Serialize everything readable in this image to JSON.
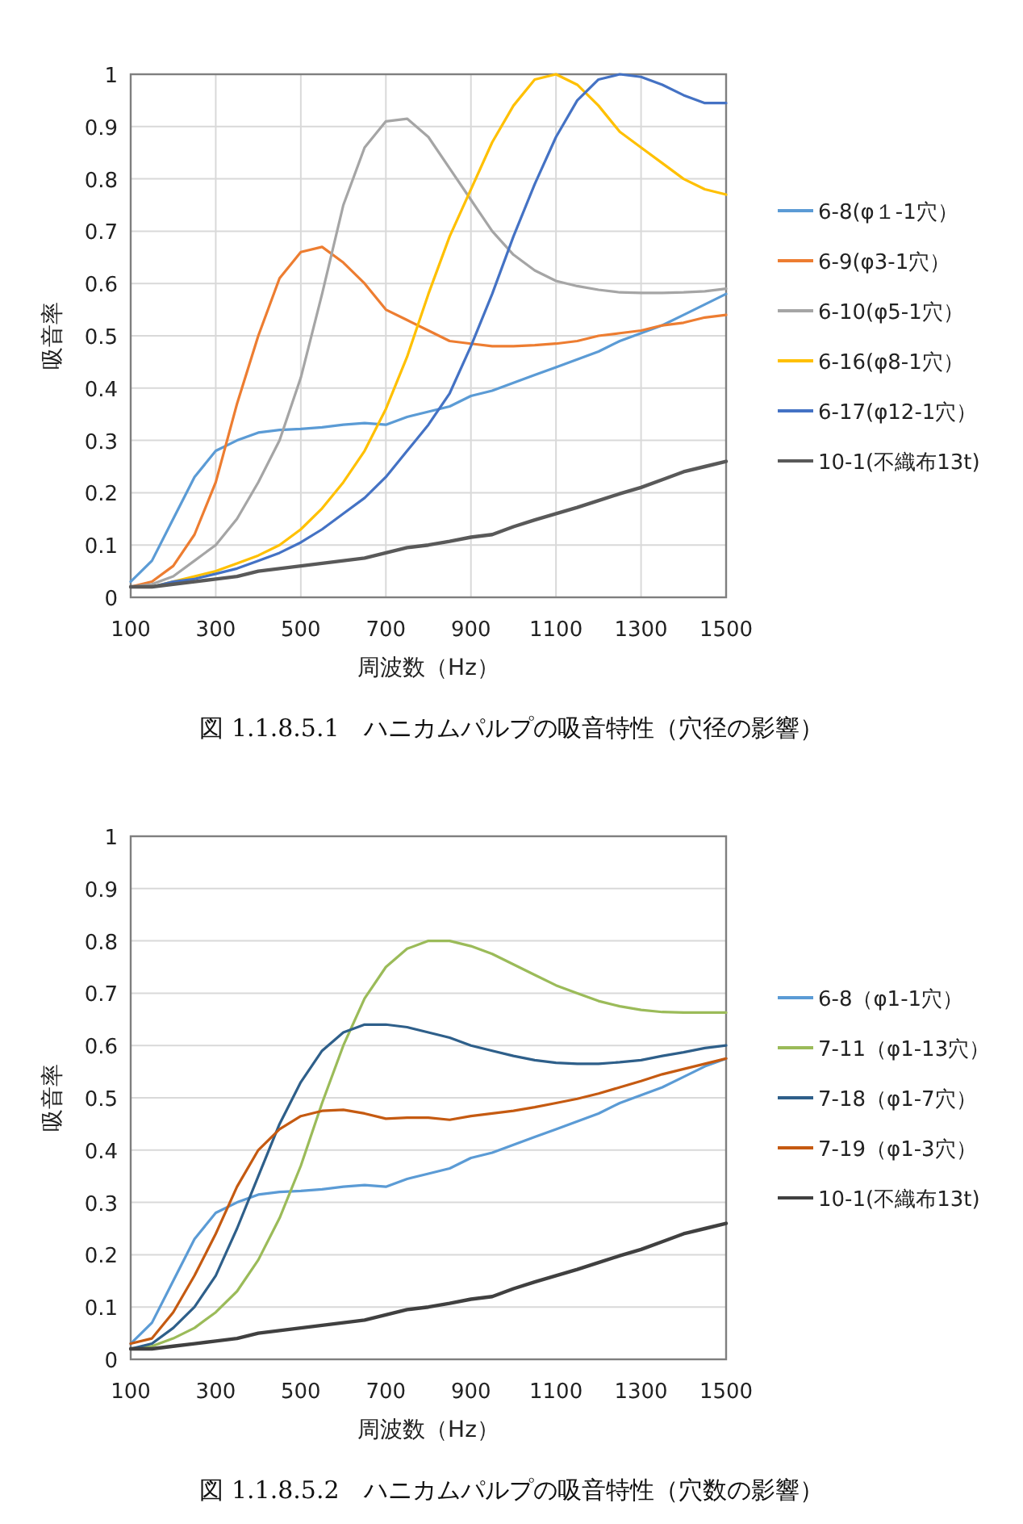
{
  "chart_data": [
    {
      "type": "line",
      "xlabel": "周波数（Hz）",
      "ylabel": "吸音率",
      "annotations": [
        "図 1.1.8.5.1　ハニカムパルプの吸音特性（穴径の影響）"
      ],
      "x": [
        100,
        150,
        200,
        250,
        300,
        350,
        400,
        450,
        500,
        550,
        600,
        650,
        700,
        750,
        800,
        850,
        900,
        950,
        1000,
        1050,
        1100,
        1150,
        1200,
        1250,
        1300,
        1350,
        1400,
        1450,
        1500
      ],
      "xlim": [
        100,
        1500
      ],
      "ylim": [
        0,
        1
      ],
      "xticks": [
        100,
        300,
        500,
        700,
        900,
        1100,
        1300,
        1500
      ],
      "yticks": [
        0,
        0.1,
        0.2,
        0.3,
        0.4,
        0.5,
        0.6,
        0.7,
        0.8,
        0.9,
        1
      ],
      "grid": true,
      "legend": "right",
      "line_style": "solid",
      "series": [
        {
          "name": "6-8(φ１-1穴）",
          "color": "#5b9bd5",
          "values": [
            0.03,
            0.07,
            0.15,
            0.23,
            0.28,
            0.3,
            0.315,
            0.32,
            0.322,
            0.325,
            0.33,
            0.333,
            0.33,
            0.345,
            0.355,
            0.365,
            0.385,
            0.395,
            0.41,
            0.425,
            0.44,
            0.455,
            0.47,
            0.49,
            0.505,
            0.52,
            0.54,
            0.56,
            0.58
          ]
        },
        {
          "name": "6-9(φ3-1穴）",
          "color": "#ed7d31",
          "values": [
            0.02,
            0.03,
            0.06,
            0.12,
            0.22,
            0.37,
            0.5,
            0.61,
            0.66,
            0.67,
            0.64,
            0.6,
            0.55,
            0.53,
            0.51,
            0.49,
            0.485,
            0.48,
            0.48,
            0.482,
            0.485,
            0.49,
            0.5,
            0.505,
            0.51,
            0.52,
            0.525,
            0.535,
            0.54
          ]
        },
        {
          "name": "6-10(φ5-1穴）",
          "color": "#a5a5a5",
          "values": [
            0.02,
            0.025,
            0.04,
            0.07,
            0.1,
            0.15,
            0.22,
            0.3,
            0.42,
            0.58,
            0.75,
            0.86,
            0.91,
            0.915,
            0.88,
            0.82,
            0.76,
            0.7,
            0.655,
            0.625,
            0.605,
            0.595,
            0.588,
            0.583,
            0.582,
            0.582,
            0.583,
            0.585,
            0.59
          ]
        },
        {
          "name": "6-16(φ8-1穴）",
          "color": "#ffc000",
          "values": [
            0.02,
            0.02,
            0.03,
            0.04,
            0.05,
            0.065,
            0.08,
            0.1,
            0.13,
            0.17,
            0.22,
            0.28,
            0.36,
            0.46,
            0.58,
            0.69,
            0.78,
            0.87,
            0.94,
            0.99,
            1.0,
            0.98,
            0.94,
            0.89,
            0.86,
            0.83,
            0.8,
            0.78,
            0.77
          ]
        },
        {
          "name": "6-17(φ12-1穴）",
          "color": "#4472c4",
          "values": [
            0.02,
            0.02,
            0.03,
            0.035,
            0.045,
            0.055,
            0.07,
            0.085,
            0.105,
            0.13,
            0.16,
            0.19,
            0.23,
            0.28,
            0.33,
            0.39,
            0.48,
            0.58,
            0.69,
            0.79,
            0.88,
            0.95,
            0.99,
            1.0,
            0.995,
            0.98,
            0.96,
            0.945,
            0.945
          ]
        },
        {
          "name": "10-1(不織布13t)",
          "color": "#595959",
          "values": [
            0.02,
            0.02,
            0.025,
            0.03,
            0.035,
            0.04,
            0.05,
            0.055,
            0.06,
            0.065,
            0.07,
            0.075,
            0.085,
            0.095,
            0.1,
            0.107,
            0.115,
            0.12,
            0.135,
            0.148,
            0.16,
            0.172,
            0.185,
            0.198,
            0.21,
            0.225,
            0.24,
            0.25,
            0.26
          ]
        }
      ]
    },
    {
      "type": "line",
      "xlabel": "周波数（Hz）",
      "ylabel": "吸音率",
      "annotations": [
        "図 1.1.8.5.2　ハニカムパルプの吸音特性（穴数の影響）"
      ],
      "x": [
        100,
        150,
        200,
        250,
        300,
        350,
        400,
        450,
        500,
        550,
        600,
        650,
        700,
        750,
        800,
        850,
        900,
        950,
        1000,
        1050,
        1100,
        1150,
        1200,
        1250,
        1300,
        1350,
        1400,
        1450,
        1500
      ],
      "xlim": [
        100,
        1500
      ],
      "ylim": [
        0,
        1
      ],
      "xticks": [
        100,
        300,
        500,
        700,
        900,
        1100,
        1300,
        1500
      ],
      "yticks": [
        0,
        0.1,
        0.2,
        0.3,
        0.4,
        0.5,
        0.6,
        0.7,
        0.8,
        0.9,
        1
      ],
      "grid": "y",
      "legend": "right",
      "line_style": "solid",
      "series": [
        {
          "name": "6-8（φ1-1穴）",
          "color": "#5b9bd5",
          "values": [
            0.03,
            0.07,
            0.15,
            0.23,
            0.28,
            0.3,
            0.315,
            0.32,
            0.322,
            0.325,
            0.33,
            0.333,
            0.33,
            0.345,
            0.355,
            0.365,
            0.385,
            0.395,
            0.41,
            0.425,
            0.44,
            0.455,
            0.47,
            0.49,
            0.505,
            0.52,
            0.54,
            0.56,
            0.575
          ]
        },
        {
          "name": "7-11（φ1-13穴）",
          "color": "#9bbb59",
          "values": [
            0.02,
            0.025,
            0.04,
            0.06,
            0.09,
            0.13,
            0.19,
            0.27,
            0.37,
            0.49,
            0.6,
            0.69,
            0.75,
            0.785,
            0.8,
            0.8,
            0.79,
            0.775,
            0.755,
            0.735,
            0.715,
            0.7,
            0.685,
            0.675,
            0.668,
            0.664,
            0.663,
            0.663,
            0.663
          ]
        },
        {
          "name": "7-18（φ1-7穴）",
          "color": "#2e5f8a",
          "values": [
            0.02,
            0.03,
            0.06,
            0.1,
            0.16,
            0.25,
            0.35,
            0.45,
            0.53,
            0.59,
            0.625,
            0.64,
            0.64,
            0.635,
            0.625,
            0.615,
            0.6,
            0.59,
            0.58,
            0.572,
            0.567,
            0.565,
            0.565,
            0.568,
            0.572,
            0.58,
            0.587,
            0.595,
            0.6
          ]
        },
        {
          "name": "7-19（φ1-3穴）",
          "color": "#c55a11",
          "values": [
            0.03,
            0.04,
            0.09,
            0.16,
            0.24,
            0.33,
            0.4,
            0.44,
            0.465,
            0.475,
            0.477,
            0.47,
            0.46,
            0.462,
            0.462,
            0.458,
            0.465,
            0.47,
            0.475,
            0.482,
            0.49,
            0.498,
            0.508,
            0.52,
            0.532,
            0.545,
            0.555,
            0.565,
            0.575
          ]
        },
        {
          "name": "10-1(不織布13t)",
          "color": "#404040",
          "values": [
            0.02,
            0.02,
            0.025,
            0.03,
            0.035,
            0.04,
            0.05,
            0.055,
            0.06,
            0.065,
            0.07,
            0.075,
            0.085,
            0.095,
            0.1,
            0.107,
            0.115,
            0.12,
            0.135,
            0.148,
            0.16,
            0.172,
            0.185,
            0.198,
            0.21,
            0.225,
            0.24,
            0.25,
            0.26
          ]
        }
      ]
    }
  ]
}
